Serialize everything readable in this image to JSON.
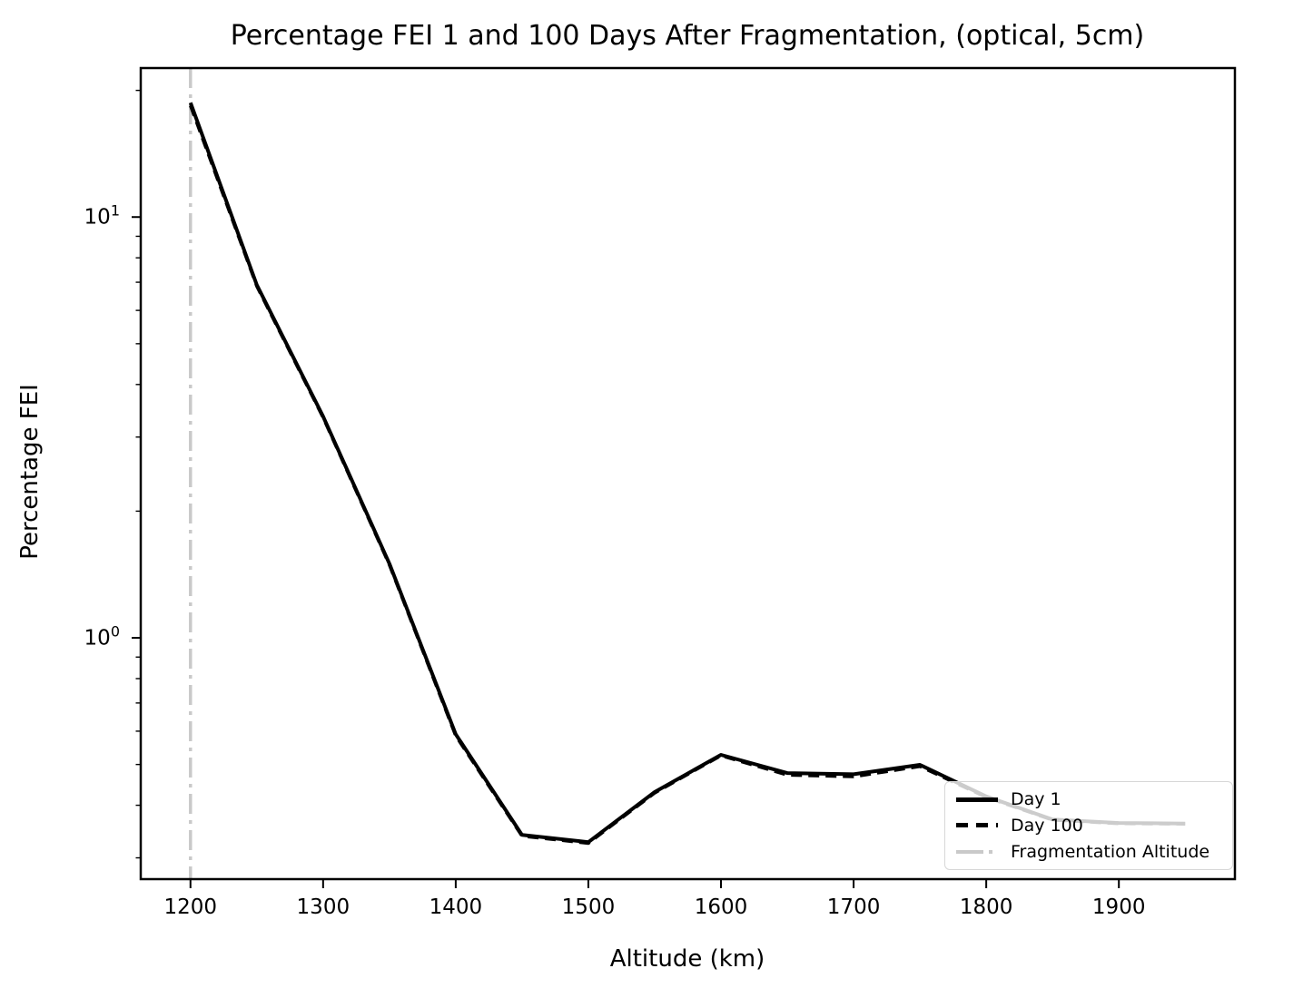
{
  "title": "Percentage FEI 1 and 100 Days After Fragmentation, (optical, 5cm)",
  "x_axis": {
    "label": "Altitude (km)",
    "ticks": [
      1200,
      1300,
      1400,
      1500,
      1600,
      1700,
      1800,
      1900
    ]
  },
  "y_axis": {
    "label": "Percentage FEI",
    "ticks": [
      {
        "base": "10",
        "exp": "1",
        "value": 10
      },
      {
        "base": "10",
        "exp": "0",
        "value": 1
      }
    ]
  },
  "legend": {
    "items": [
      {
        "label": "Day 1",
        "style": "solid",
        "color": "#000000"
      },
      {
        "label": "Day 100",
        "style": "dashed",
        "color": "#000000"
      },
      {
        "label": "Fragmentation Altitude",
        "style": "dashdot",
        "color": "#c9c9c9"
      }
    ],
    "position": "lower right"
  },
  "chart_data": {
    "type": "line",
    "title": "Percentage FEI 1 and 100 Days After Fragmentation, (optical, 5cm)",
    "xlabel": "Altitude (km)",
    "ylabel": "Percentage FEI",
    "yscale": "log",
    "grid": false,
    "xlim": [
      1162.5,
      1987.5
    ],
    "ylim": [
      0.267,
      22.6
    ],
    "fragmentation_altitude": 1200,
    "x": [
      1200,
      1250,
      1300,
      1350,
      1400,
      1450,
      1500,
      1550,
      1600,
      1650,
      1700,
      1750,
      1800,
      1850,
      1900,
      1950
    ],
    "series": [
      {
        "name": "Day 1",
        "values": [
          18.7,
          6.9,
          3.36,
          1.5,
          0.59,
          0.34,
          0.327,
          0.43,
          0.527,
          0.477,
          0.474,
          0.499,
          0.42,
          0.37,
          0.363,
          0.362
        ]
      },
      {
        "name": "Day 100",
        "values": [
          18.4,
          6.85,
          3.34,
          1.49,
          0.585,
          0.338,
          0.325,
          0.428,
          0.525,
          0.472,
          0.468,
          0.495,
          0.418,
          0.369,
          0.362,
          0.361
        ]
      }
    ]
  }
}
